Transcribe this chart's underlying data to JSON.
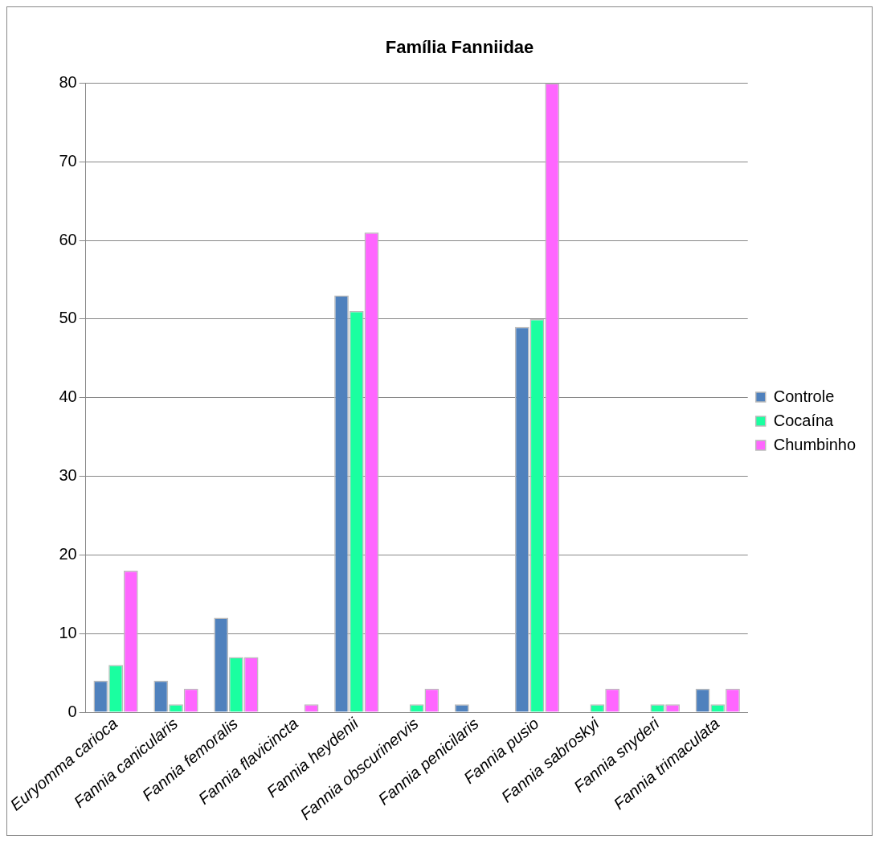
{
  "chart_data": {
    "type": "bar",
    "title": "Família Fanniidae",
    "categories": [
      "Euryomma carioca",
      "Fannia canicularis",
      "Fannia femoralis",
      "Fannia flavicincta",
      "Fannia heydenii",
      "Fannia obscurinervis",
      "Fannia penicilaris",
      "Fannia pusio",
      "Fannia sabroskyi",
      "Fannia snyderi",
      "Fannia trimaculata"
    ],
    "series": [
      {
        "name": "Controle",
        "color": "#4f81bd",
        "values": [
          4,
          4,
          12,
          0,
          53,
          0,
          1,
          49,
          0,
          0,
          3
        ]
      },
      {
        "name": "Cocaína",
        "color": "#1affa0",
        "values": [
          6,
          1,
          7,
          0,
          51,
          1,
          0,
          50,
          1,
          1,
          1
        ]
      },
      {
        "name": "Chumbinho",
        "color": "#ff66ff",
        "values": [
          18,
          3,
          7,
          1,
          61,
          3,
          0,
          80,
          3,
          1,
          3
        ]
      }
    ],
    "ylim": [
      0,
      80
    ],
    "yticks": [
      0,
      10,
      20,
      30,
      40,
      50,
      60,
      70,
      80
    ],
    "grid": "y",
    "legend": "right"
  }
}
